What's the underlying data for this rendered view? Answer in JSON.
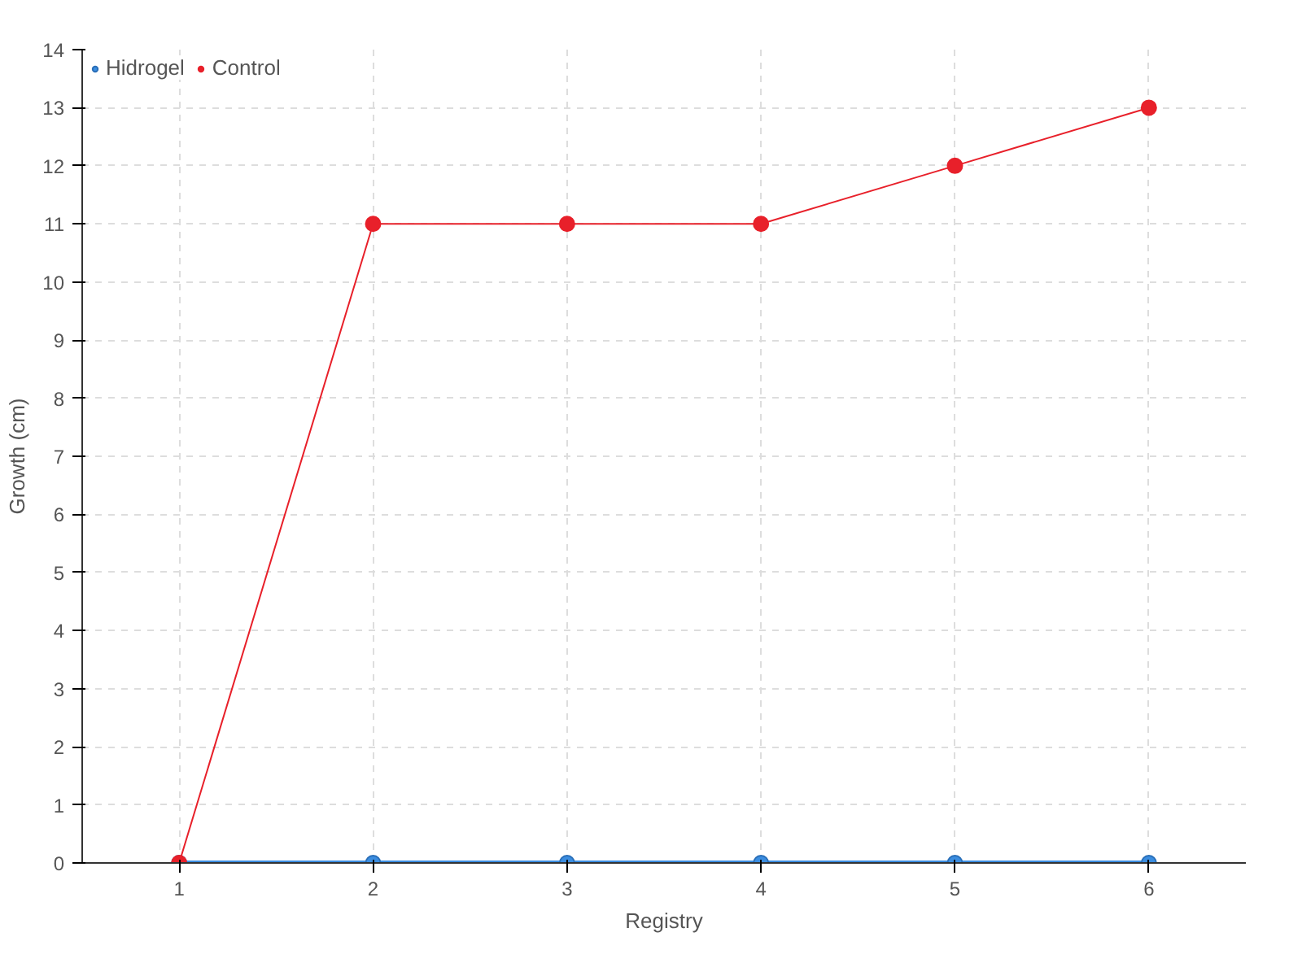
{
  "chart_data": {
    "type": "line",
    "xlabel": "Registry",
    "ylabel": "Growth (cm)",
    "categories": [
      "1",
      "2",
      "3",
      "4",
      "5",
      "6"
    ],
    "series": [
      {
        "name": "Hidrogel",
        "color": "#3b8de0",
        "values": [
          0,
          0,
          0,
          0,
          0,
          0
        ]
      },
      {
        "name": "Control",
        "color": "#e8202a",
        "values": [
          0,
          11,
          11,
          11,
          12,
          13
        ]
      }
    ],
    "ylim": [
      0,
      14
    ],
    "yticks": [
      0,
      1,
      2,
      3,
      4,
      5,
      6,
      7,
      8,
      9,
      10,
      11,
      12,
      13,
      14
    ],
    "grid": true,
    "legend": "top left",
    "marker": "circle",
    "line_style": "solid"
  }
}
